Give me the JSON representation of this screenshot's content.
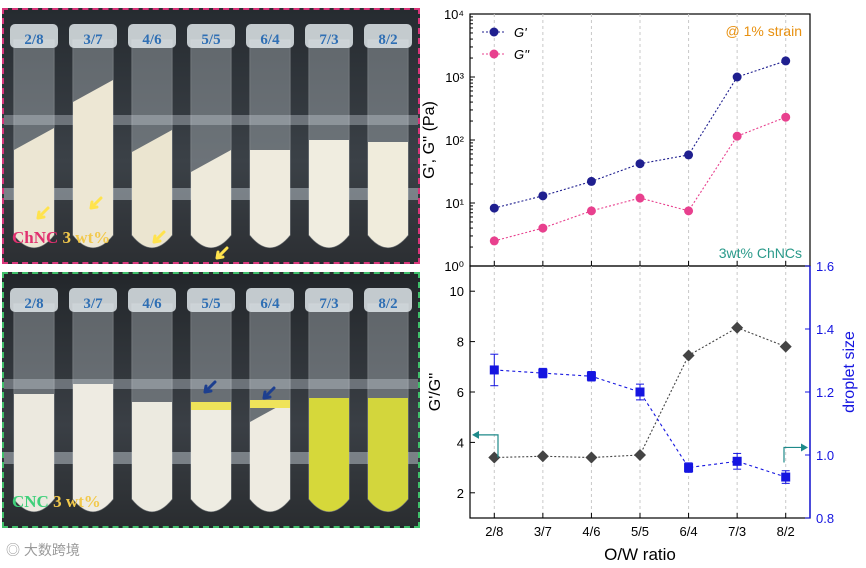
{
  "photos": {
    "ratios": [
      "2/8",
      "3/7",
      "4/6",
      "5/5",
      "6/4",
      "7/3",
      "8/2"
    ],
    "top_label": {
      "material": "ChNC",
      "conc": "3 wt%"
    },
    "bottom_label": {
      "material": "CNC",
      "conc": "3 wt%"
    }
  },
  "watermark": "大数跨境",
  "colors": {
    "gprime": "#1f1f8f",
    "gdouble": "#e8408e",
    "ratio": "#444444",
    "droplet": "#1515e0",
    "strain": "#e8900f",
    "chnc_text": "#2a9a8a",
    "arrow_teal": "#1e8a8a"
  },
  "chart_data": [
    {
      "type": "scatter",
      "title": "",
      "xlabel": "",
      "ylabel": "G', G'' (Pa)",
      "yscale": "log",
      "ylim": [
        1,
        10000
      ],
      "categories": [
        "2/8",
        "3/7",
        "4/6",
        "5/5",
        "6/4",
        "7/3",
        "8/2"
      ],
      "series": [
        {
          "name": "G'",
          "values": [
            8.3,
            13,
            22,
            42,
            58,
            1000,
            1800
          ]
        },
        {
          "name": "G''",
          "values": [
            2.5,
            4,
            7.5,
            12,
            7.5,
            115,
            230
          ]
        }
      ],
      "annotations": [
        "@ 1% strain",
        "3wt% ChNCs"
      ],
      "yticks": [
        "10⁰",
        "10¹",
        "10²",
        "10³",
        "10⁴"
      ]
    },
    {
      "type": "scatter",
      "xlabel": "O/W ratio",
      "ylabel": "G'/G''",
      "y2label": "droplet size",
      "ylim": [
        1,
        11
      ],
      "y2lim": [
        0.8,
        1.6
      ],
      "categories": [
        "2/8",
        "3/7",
        "4/6",
        "5/5",
        "6/4",
        "7/3",
        "8/2"
      ],
      "yticks": [
        "2",
        "4",
        "6",
        "8",
        "10"
      ],
      "y2ticks": [
        "0.8",
        "1.0",
        "1.2",
        "1.4",
        "1.6"
      ],
      "series": [
        {
          "name": "G'/G''",
          "axis": "left",
          "values": [
            3.4,
            3.45,
            3.4,
            3.5,
            7.45,
            8.55,
            7.8
          ]
        },
        {
          "name": "droplet size",
          "axis": "right",
          "values": [
            1.27,
            1.26,
            1.25,
            1.2,
            0.96,
            0.98,
            0.93
          ],
          "errors": [
            0.05,
            0.015,
            0.015,
            0.025,
            0.015,
            0.025,
            0.02
          ]
        }
      ]
    }
  ]
}
